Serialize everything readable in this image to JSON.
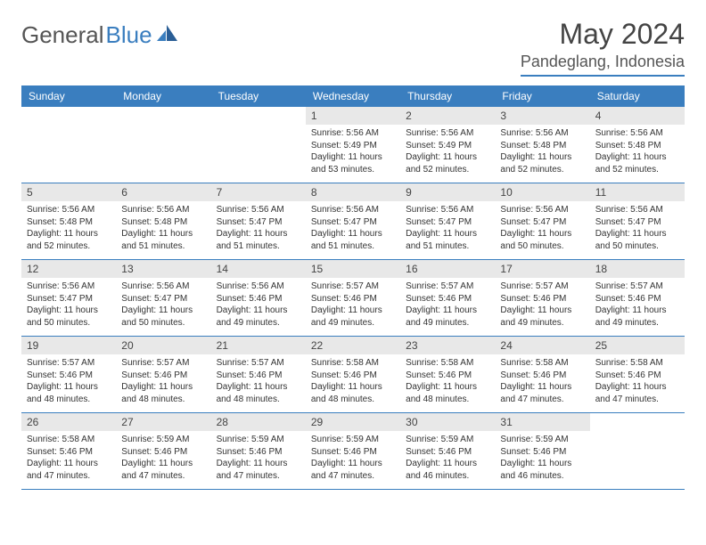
{
  "brand": {
    "word1": "General",
    "word2": "Blue"
  },
  "title": "May 2024",
  "location": "Pandeglang, Indonesia",
  "colors": {
    "accent": "#3a7ebf",
    "daybar": "#e8e8e8",
    "text": "#333333",
    "bg": "#ffffff"
  },
  "weekdays": [
    "Sunday",
    "Monday",
    "Tuesday",
    "Wednesday",
    "Thursday",
    "Friday",
    "Saturday"
  ],
  "grid": {
    "columns": 7,
    "rows": 5,
    "lead_blanks": 3
  },
  "days": [
    {
      "n": 1,
      "sunrise": "5:56 AM",
      "sunset": "5:49 PM",
      "daylight": "11 hours and 53 minutes."
    },
    {
      "n": 2,
      "sunrise": "5:56 AM",
      "sunset": "5:49 PM",
      "daylight": "11 hours and 52 minutes."
    },
    {
      "n": 3,
      "sunrise": "5:56 AM",
      "sunset": "5:48 PM",
      "daylight": "11 hours and 52 minutes."
    },
    {
      "n": 4,
      "sunrise": "5:56 AM",
      "sunset": "5:48 PM",
      "daylight": "11 hours and 52 minutes."
    },
    {
      "n": 5,
      "sunrise": "5:56 AM",
      "sunset": "5:48 PM",
      "daylight": "11 hours and 52 minutes."
    },
    {
      "n": 6,
      "sunrise": "5:56 AM",
      "sunset": "5:48 PM",
      "daylight": "11 hours and 51 minutes."
    },
    {
      "n": 7,
      "sunrise": "5:56 AM",
      "sunset": "5:47 PM",
      "daylight": "11 hours and 51 minutes."
    },
    {
      "n": 8,
      "sunrise": "5:56 AM",
      "sunset": "5:47 PM",
      "daylight": "11 hours and 51 minutes."
    },
    {
      "n": 9,
      "sunrise": "5:56 AM",
      "sunset": "5:47 PM",
      "daylight": "11 hours and 51 minutes."
    },
    {
      "n": 10,
      "sunrise": "5:56 AM",
      "sunset": "5:47 PM",
      "daylight": "11 hours and 50 minutes."
    },
    {
      "n": 11,
      "sunrise": "5:56 AM",
      "sunset": "5:47 PM",
      "daylight": "11 hours and 50 minutes."
    },
    {
      "n": 12,
      "sunrise": "5:56 AM",
      "sunset": "5:47 PM",
      "daylight": "11 hours and 50 minutes."
    },
    {
      "n": 13,
      "sunrise": "5:56 AM",
      "sunset": "5:47 PM",
      "daylight": "11 hours and 50 minutes."
    },
    {
      "n": 14,
      "sunrise": "5:56 AM",
      "sunset": "5:46 PM",
      "daylight": "11 hours and 49 minutes."
    },
    {
      "n": 15,
      "sunrise": "5:57 AM",
      "sunset": "5:46 PM",
      "daylight": "11 hours and 49 minutes."
    },
    {
      "n": 16,
      "sunrise": "5:57 AM",
      "sunset": "5:46 PM",
      "daylight": "11 hours and 49 minutes."
    },
    {
      "n": 17,
      "sunrise": "5:57 AM",
      "sunset": "5:46 PM",
      "daylight": "11 hours and 49 minutes."
    },
    {
      "n": 18,
      "sunrise": "5:57 AM",
      "sunset": "5:46 PM",
      "daylight": "11 hours and 49 minutes."
    },
    {
      "n": 19,
      "sunrise": "5:57 AM",
      "sunset": "5:46 PM",
      "daylight": "11 hours and 48 minutes."
    },
    {
      "n": 20,
      "sunrise": "5:57 AM",
      "sunset": "5:46 PM",
      "daylight": "11 hours and 48 minutes."
    },
    {
      "n": 21,
      "sunrise": "5:57 AM",
      "sunset": "5:46 PM",
      "daylight": "11 hours and 48 minutes."
    },
    {
      "n": 22,
      "sunrise": "5:58 AM",
      "sunset": "5:46 PM",
      "daylight": "11 hours and 48 minutes."
    },
    {
      "n": 23,
      "sunrise": "5:58 AM",
      "sunset": "5:46 PM",
      "daylight": "11 hours and 48 minutes."
    },
    {
      "n": 24,
      "sunrise": "5:58 AM",
      "sunset": "5:46 PM",
      "daylight": "11 hours and 47 minutes."
    },
    {
      "n": 25,
      "sunrise": "5:58 AM",
      "sunset": "5:46 PM",
      "daylight": "11 hours and 47 minutes."
    },
    {
      "n": 26,
      "sunrise": "5:58 AM",
      "sunset": "5:46 PM",
      "daylight": "11 hours and 47 minutes."
    },
    {
      "n": 27,
      "sunrise": "5:59 AM",
      "sunset": "5:46 PM",
      "daylight": "11 hours and 47 minutes."
    },
    {
      "n": 28,
      "sunrise": "5:59 AM",
      "sunset": "5:46 PM",
      "daylight": "11 hours and 47 minutes."
    },
    {
      "n": 29,
      "sunrise": "5:59 AM",
      "sunset": "5:46 PM",
      "daylight": "11 hours and 47 minutes."
    },
    {
      "n": 30,
      "sunrise": "5:59 AM",
      "sunset": "5:46 PM",
      "daylight": "11 hours and 46 minutes."
    },
    {
      "n": 31,
      "sunrise": "5:59 AM",
      "sunset": "5:46 PM",
      "daylight": "11 hours and 46 minutes."
    }
  ],
  "labels": {
    "sunrise": "Sunrise:",
    "sunset": "Sunset:",
    "daylight": "Daylight:"
  }
}
